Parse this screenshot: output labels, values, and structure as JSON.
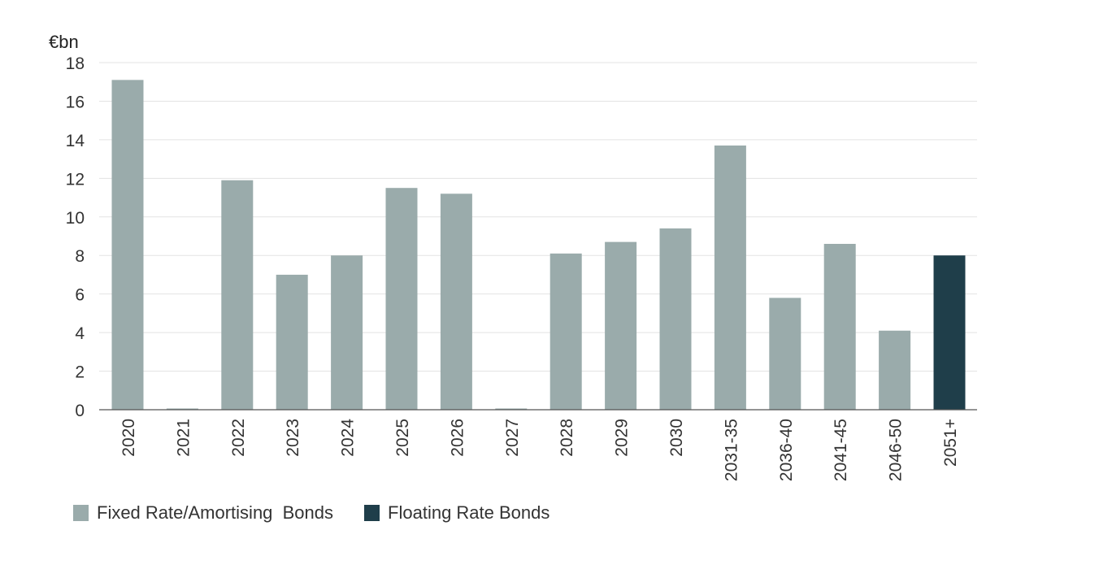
{
  "chart_data": {
    "type": "bar",
    "unit_label": "€bn",
    "categories": [
      "2020",
      "2021",
      "2022",
      "2023",
      "2024",
      "2025",
      "2026",
      "2027",
      "2028",
      "2029",
      "2030",
      "2031-35",
      "2036-40",
      "2041-45",
      "2046-50",
      "2051+"
    ],
    "series": [
      {
        "name": "Fixed Rate/Amortising  Bonds",
        "color": "#9aabab",
        "values": [
          17.1,
          0,
          11.9,
          7.0,
          8.0,
          11.5,
          11.2,
          0,
          8.1,
          8.7,
          9.4,
          13.7,
          5.8,
          8.6,
          4.1,
          0
        ]
      },
      {
        "name": "Floating Rate Bonds",
        "color": "#1f3e4a",
        "values": [
          0,
          0,
          0,
          0,
          0,
          0,
          0,
          0,
          0,
          0,
          0,
          0,
          0,
          0,
          0,
          8.0
        ]
      }
    ],
    "yticks": [
      "0",
      "2",
      "4",
      "6",
      "8",
      "10",
      "12",
      "14",
      "16",
      "18"
    ],
    "ylim": [
      0,
      18
    ],
    "grid": true,
    "legend_position": "bottom-left"
  }
}
